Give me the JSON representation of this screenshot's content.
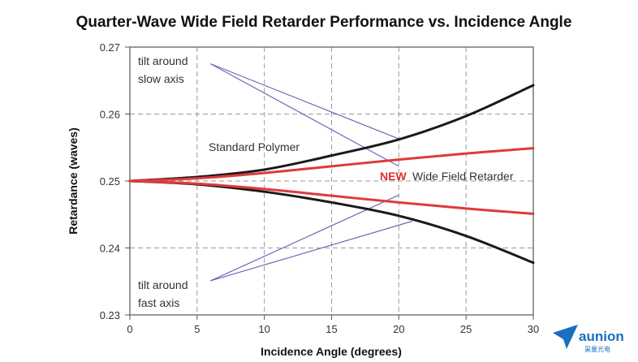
{
  "chart_data": {
    "type": "line",
    "title": "Quarter-Wave Wide Field Retarder Performance vs. Incidence Angle",
    "xlabel": "Incidence Angle (degrees)",
    "ylabel": "Retardance (waves)",
    "xlim": [
      0,
      30
    ],
    "ylim": [
      0.23,
      0.27
    ],
    "xticks": [
      "0",
      "5",
      "10",
      "15",
      "20",
      "25",
      "30"
    ],
    "yticks": [
      "0.23",
      "0.24",
      "0.25",
      "0.26",
      "0.27"
    ],
    "grid": true,
    "series": [
      {
        "group": "standard-polymer",
        "axis": "slow",
        "color": "#1a1a1a",
        "x": [
          0,
          5,
          10,
          15,
          20,
          25,
          30
        ],
        "y": [
          0.25,
          0.2506,
          0.2517,
          0.2538,
          0.2562,
          0.2597,
          0.2643
        ]
      },
      {
        "group": "standard-polymer",
        "axis": "fast",
        "color": "#1a1a1a",
        "x": [
          0,
          5,
          10,
          15,
          20,
          25,
          30
        ],
        "y": [
          0.25,
          0.2495,
          0.2484,
          0.2468,
          0.2448,
          0.2418,
          0.2378
        ]
      },
      {
        "group": "wide-field-retarder",
        "axis": "slow",
        "color": "#e03a3a",
        "x": [
          0,
          5,
          10,
          15,
          20,
          25,
          30
        ],
        "y": [
          0.25,
          0.2504,
          0.2512,
          0.2522,
          0.2532,
          0.2541,
          0.2549
        ]
      },
      {
        "group": "wide-field-retarder",
        "axis": "fast",
        "color": "#e03a3a",
        "x": [
          0,
          5,
          10,
          15,
          20,
          25,
          30
        ],
        "y": [
          0.25,
          0.2496,
          0.2488,
          0.2478,
          0.2468,
          0.2459,
          0.2451
        ]
      }
    ],
    "annotations": {
      "tilt_slow": [
        "tilt around",
        "slow axis"
      ],
      "tilt_fast": [
        "tilt around",
        "fast axis"
      ],
      "standard_polymer": "Standard Polymer",
      "new_word": "NEW",
      "wide_field": "Wide Field Retarder"
    },
    "pointer_lines": [
      {
        "from": [
          6,
          0.2675
        ],
        "to": [
          20,
          0.2563
        ]
      },
      {
        "from": [
          6,
          0.2675
        ],
        "to": [
          20,
          0.2522
        ]
      },
      {
        "from": [
          6,
          0.2351
        ],
        "to": [
          20,
          0.2479
        ]
      },
      {
        "from": [
          6,
          0.2351
        ],
        "to": [
          21,
          0.244
        ]
      }
    ],
    "pointer_color": "#6a6ab8"
  },
  "logo": {
    "name": "aunion",
    "subtitle": "昊量光电",
    "color": "#1a6fc0"
  }
}
